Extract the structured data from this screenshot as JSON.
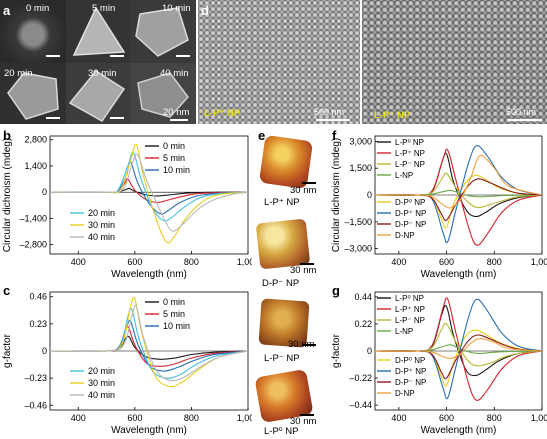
{
  "panel_letters": {
    "a": "a",
    "b": "b",
    "c": "c",
    "d": "d",
    "e": "e",
    "f": "f",
    "g": "g"
  },
  "panel_a": {
    "tiles": [
      "0 min",
      "5 min",
      "10 min",
      "20 min",
      "30 min",
      "40 min"
    ],
    "scale_label": "20 nm"
  },
  "panel_d": {
    "left_label": "L-P⁺ NP",
    "right_label": "L-P⁻ NP",
    "scale_left": "500 nm",
    "scale_right": "500 nm"
  },
  "panel_e": {
    "items": [
      {
        "label": "L-P⁺ NP",
        "scale": "30 nm"
      },
      {
        "label": "D-P⁻ NP",
        "scale": "30 nm"
      },
      {
        "label": "L-P⁻ NP",
        "scale": "30 nm"
      },
      {
        "label": "L-P⁰ NP",
        "scale": "30 nm"
      }
    ]
  },
  "colors": {
    "black": "#1a1a1a",
    "red": "#d6222e",
    "blue": "#2a6db5",
    "cyan": "#45c0e0",
    "yellow": "#e8cf1e",
    "gray": "#b8b8b8",
    "yellowgreen": "#b8b832",
    "orange": "#f0a040",
    "darkred": "#8a1a1a",
    "green": "#6aa94a"
  },
  "chart_data": [
    {
      "id": "b",
      "type": "line",
      "xlabel": "Wavelength (nm)",
      "ylabel": "Circular dichroism (mdeg)",
      "xlim": [
        300,
        1000
      ],
      "ylim": [
        -3300,
        3000
      ],
      "xticks": [
        400,
        600,
        800,
        1000
      ],
      "xtick_labels": [
        "400",
        "600",
        "800",
        "1,000"
      ],
      "yticks": [
        2800,
        1400,
        0,
        -1400,
        -2800
      ],
      "ytick_labels": [
        "2,800",
        "1,400",
        "0",
        "–1,400",
        "–2,800"
      ],
      "legend_top": [
        "0 min",
        "5 min",
        "10 min"
      ],
      "legend_bottom": [
        "20 min",
        "30 min",
        "40 min"
      ],
      "series": [
        {
          "name": "0 min",
          "color": "#1a1a1a",
          "x": [
            300,
            500,
            540,
            570,
            580,
            600,
            640,
            680,
            720,
            760,
            820,
            900,
            1000
          ],
          "y": [
            0,
            0,
            20,
            150,
            200,
            50,
            -150,
            -200,
            -150,
            -80,
            -20,
            0,
            0
          ]
        },
        {
          "name": "5 min",
          "color": "#d6222e",
          "x": [
            300,
            500,
            540,
            565,
            575,
            600,
            640,
            680,
            710,
            760,
            820,
            900,
            1000
          ],
          "y": [
            0,
            0,
            40,
            500,
            700,
            100,
            -400,
            -550,
            -450,
            -250,
            -80,
            -20,
            0
          ]
        },
        {
          "name": "10 min",
          "color": "#2a6db5",
          "x": [
            300,
            500,
            540,
            570,
            585,
            610,
            650,
            690,
            720,
            760,
            820,
            900,
            1000
          ],
          "y": [
            0,
            0,
            60,
            900,
            1600,
            500,
            -600,
            -1150,
            -950,
            -550,
            -200,
            -50,
            0
          ]
        },
        {
          "name": "20 min",
          "color": "#45c0e0",
          "x": [
            300,
            500,
            540,
            575,
            595,
            620,
            660,
            700,
            730,
            770,
            830,
            900,
            1000
          ],
          "y": [
            0,
            0,
            100,
            1400,
            2100,
            800,
            -800,
            -1500,
            -1350,
            -850,
            -300,
            -80,
            0
          ]
        },
        {
          "name": "30 min",
          "color": "#e8cf1e",
          "x": [
            300,
            500,
            550,
            585,
            605,
            630,
            670,
            710,
            740,
            780,
            840,
            900,
            1000
          ],
          "y": [
            0,
            0,
            150,
            1700,
            2550,
            900,
            -1200,
            -2650,
            -2350,
            -1400,
            -500,
            -120,
            0
          ]
        },
        {
          "name": "40 min",
          "color": "#b8b8b8",
          "x": [
            300,
            500,
            560,
            590,
            610,
            640,
            690,
            730,
            770,
            820,
            880,
            950,
            1000
          ],
          "y": [
            0,
            0,
            200,
            1500,
            2000,
            700,
            -1000,
            -2050,
            -1700,
            -950,
            -400,
            -100,
            0
          ]
        }
      ]
    },
    {
      "id": "c",
      "type": "line",
      "xlabel": "Wavelength (nm)",
      "ylabel": "g-factor",
      "xlim": [
        300,
        1000
      ],
      "ylim": [
        -0.5,
        0.5
      ],
      "xticks": [
        400,
        600,
        800,
        1000
      ],
      "xtick_labels": [
        "400",
        "600",
        "800",
        "1,000"
      ],
      "yticks": [
        0.46,
        0.23,
        0,
        -0.23,
        -0.46
      ],
      "ytick_labels": [
        "0.46",
        "0.23",
        "0",
        "–0.23",
        "–0.46"
      ],
      "legend_top": [
        "0 min",
        "5 min",
        "10 min"
      ],
      "legend_bottom": [
        "20 min",
        "30 min",
        "40 min"
      ],
      "series": [
        {
          "name": "0 min",
          "color": "#1a1a1a",
          "x": [
            300,
            500,
            545,
            565,
            580,
            600,
            640,
            690,
            740,
            800,
            880,
            1000
          ],
          "y": [
            0,
            0,
            0.02,
            0.1,
            0.12,
            0.03,
            -0.05,
            -0.07,
            -0.06,
            -0.03,
            -0.01,
            0
          ]
        },
        {
          "name": "5 min",
          "color": "#d6222e",
          "x": [
            300,
            500,
            545,
            565,
            578,
            600,
            640,
            690,
            740,
            800,
            880,
            1000
          ],
          "y": [
            0,
            0,
            0.03,
            0.17,
            0.2,
            0.05,
            -0.1,
            -0.13,
            -0.11,
            -0.06,
            -0.02,
            0
          ]
        },
        {
          "name": "10 min",
          "color": "#2a6db5",
          "x": [
            300,
            500,
            545,
            570,
            585,
            610,
            650,
            700,
            750,
            810,
            880,
            1000
          ],
          "y": [
            0,
            0,
            0.04,
            0.2,
            0.25,
            0.06,
            -0.12,
            -0.17,
            -0.14,
            -0.08,
            -0.03,
            0
          ]
        },
        {
          "name": "20 min",
          "color": "#45c0e0",
          "x": [
            300,
            500,
            550,
            575,
            590,
            615,
            660,
            710,
            760,
            820,
            890,
            1000
          ],
          "y": [
            0,
            0,
            0.05,
            0.29,
            0.35,
            0.1,
            -0.16,
            -0.23,
            -0.2,
            -0.11,
            -0.04,
            0
          ]
        },
        {
          "name": "30 min",
          "color": "#e8cf1e",
          "x": [
            300,
            500,
            555,
            585,
            600,
            625,
            670,
            720,
            770,
            830,
            900,
            1000
          ],
          "y": [
            0,
            0,
            0.06,
            0.38,
            0.44,
            0.15,
            -0.2,
            -0.3,
            -0.26,
            -0.15,
            -0.05,
            0
          ]
        },
        {
          "name": "40 min",
          "color": "#b8b8b8",
          "x": [
            300,
            500,
            560,
            590,
            605,
            630,
            675,
            725,
            775,
            835,
            900,
            1000
          ],
          "y": [
            0,
            0,
            0.05,
            0.3,
            0.38,
            0.12,
            -0.16,
            -0.25,
            -0.22,
            -0.13,
            -0.05,
            0
          ]
        }
      ]
    },
    {
      "id": "f",
      "type": "line",
      "xlabel": "Wavelength (nm)",
      "ylabel": "Circular dichroism (mdeg)",
      "xlim": [
        300,
        1000
      ],
      "ylim": [
        -3300,
        3300
      ],
      "xticks": [
        400,
        600,
        800,
        1000
      ],
      "xtick_labels": [
        "400",
        "600",
        "800",
        "1,000"
      ],
      "yticks": [
        3000,
        1500,
        0,
        -1500,
        -3000
      ],
      "ytick_labels": [
        "3,000",
        "1,500",
        "0",
        "–1,500",
        "–3,000"
      ],
      "legend_top": [
        "L-P⁰ NP",
        "L-P⁺ NP",
        "L-P⁻ NP",
        "L-NP"
      ],
      "legend_bottom": [
        "D-P⁰ NP",
        "D-P⁺ NP",
        "D-P⁻ NP",
        "D-NP"
      ],
      "series": [
        {
          "name": "L-P⁰ NP",
          "color": "#1a1a1a",
          "x": [
            300,
            480,
            540,
            580,
            600,
            630,
            680,
            720,
            760,
            820,
            900,
            1000
          ],
          "y": [
            0,
            0,
            200,
            1800,
            2300,
            700,
            -800,
            -1200,
            -1000,
            -500,
            -150,
            0
          ]
        },
        {
          "name": "L-P⁺ NP",
          "color": "#d6222e",
          "x": [
            300,
            480,
            540,
            585,
            605,
            640,
            690,
            725,
            770,
            830,
            900,
            1000
          ],
          "y": [
            0,
            0,
            250,
            2000,
            2500,
            800,
            -1700,
            -2800,
            -2200,
            -1000,
            -300,
            0
          ]
        },
        {
          "name": "L-P⁻ NP",
          "color": "#b8b832",
          "x": [
            300,
            480,
            540,
            580,
            600,
            640,
            690,
            730,
            780,
            840,
            900,
            1000
          ],
          "y": [
            0,
            0,
            150,
            900,
            1200,
            400,
            -400,
            -700,
            -550,
            -300,
            -100,
            0
          ]
        },
        {
          "name": "L-NP",
          "color": "#6aa94a",
          "x": [
            300,
            480,
            540,
            590,
            620,
            660,
            700,
            740,
            800,
            860,
            1000
          ],
          "y": [
            0,
            0,
            50,
            200,
            250,
            80,
            -60,
            -100,
            -60,
            -20,
            0
          ]
        },
        {
          "name": "D-P⁰ NP",
          "color": "#e8cf1e",
          "x": [
            300,
            480,
            540,
            580,
            600,
            630,
            680,
            720,
            760,
            820,
            900,
            1000
          ],
          "y": [
            0,
            0,
            -150,
            -1400,
            -1800,
            -500,
            700,
            1100,
            900,
            400,
            100,
            0
          ]
        },
        {
          "name": "D-P⁺ NP",
          "color": "#2a6db5",
          "x": [
            300,
            480,
            540,
            585,
            605,
            640,
            690,
            725,
            770,
            830,
            900,
            1000
          ],
          "y": [
            0,
            0,
            -250,
            -2100,
            -2600,
            -800,
            1700,
            2750,
            2200,
            1000,
            300,
            0
          ]
        },
        {
          "name": "D-P⁻ NP",
          "color": "#8a1a1a",
          "x": [
            300,
            480,
            540,
            580,
            600,
            640,
            690,
            730,
            780,
            840,
            900,
            1000
          ],
          "y": [
            0,
            0,
            -200,
            -1100,
            -1400,
            -500,
            500,
            900,
            700,
            350,
            100,
            0
          ]
        },
        {
          "name": "D-NP",
          "color": "#f0a040",
          "x": [
            300,
            480,
            540,
            590,
            620,
            660,
            700,
            740,
            800,
            860,
            1000
          ],
          "y": [
            0,
            0,
            -100,
            -600,
            -700,
            -200,
            900,
            2200,
            1500,
            500,
            0
          ]
        }
      ]
    },
    {
      "id": "g",
      "type": "line",
      "xlabel": "Wavelength (nm)",
      "ylabel": "g-factor",
      "xlim": [
        300,
        1000
      ],
      "ylim": [
        -0.48,
        0.48
      ],
      "xticks": [
        400,
        600,
        800,
        1000
      ],
      "xtick_labels": [
        "400",
        "600",
        "800",
        "1,000"
      ],
      "yticks": [
        0.44,
        0.22,
        0,
        -0.22,
        -0.44
      ],
      "ytick_labels": [
        "0.44",
        "0.22",
        "0",
        "–0.22",
        "–0.44"
      ],
      "legend_top": [
        "L-P⁰ NP",
        "L-P⁺ NP",
        "L-P⁻ NP",
        "L-NP"
      ],
      "legend_bottom": [
        "D-P⁰ NP",
        "D-P⁺ NP",
        "D-P⁻ NP",
        "D-NP"
      ],
      "series": [
        {
          "name": "L-P⁰ NP",
          "color": "#1a1a1a",
          "x": [
            300,
            480,
            540,
            580,
            600,
            630,
            680,
            720,
            760,
            820,
            900,
            1000
          ],
          "y": [
            0,
            0,
            0.04,
            0.3,
            0.36,
            0.12,
            -0.15,
            -0.2,
            -0.16,
            -0.08,
            -0.02,
            0
          ]
        },
        {
          "name": "L-P⁺ NP",
          "color": "#d6222e",
          "x": [
            300,
            480,
            540,
            585,
            605,
            640,
            690,
            725,
            770,
            830,
            900,
            1000
          ],
          "y": [
            0,
            0,
            0.05,
            0.35,
            0.42,
            0.14,
            -0.25,
            -0.4,
            -0.32,
            -0.15,
            -0.04,
            0
          ]
        },
        {
          "name": "L-P⁻ NP",
          "color": "#b8b832",
          "x": [
            300,
            480,
            540,
            580,
            600,
            640,
            690,
            730,
            780,
            840,
            900,
            1000
          ],
          "y": [
            0,
            0,
            0.03,
            0.18,
            0.22,
            0.07,
            -0.08,
            -0.12,
            -0.1,
            -0.05,
            -0.02,
            0
          ]
        },
        {
          "name": "L-NP",
          "color": "#6aa94a",
          "x": [
            300,
            480,
            540,
            590,
            620,
            660,
            700,
            740,
            800,
            860,
            1000
          ],
          "y": [
            0,
            0,
            0.01,
            0.04,
            0.05,
            0.015,
            -0.01,
            -0.02,
            -0.01,
            -0.005,
            0
          ]
        },
        {
          "name": "D-P⁰ NP",
          "color": "#e8cf1e",
          "x": [
            300,
            480,
            540,
            580,
            600,
            630,
            680,
            720,
            760,
            820,
            900,
            1000
          ],
          "y": [
            0,
            0,
            -0.03,
            -0.22,
            -0.28,
            -0.09,
            0.12,
            0.17,
            0.14,
            0.07,
            0.02,
            0
          ]
        },
        {
          "name": "D-P⁺ NP",
          "color": "#2a6db5",
          "x": [
            300,
            480,
            540,
            585,
            605,
            640,
            690,
            725,
            770,
            830,
            900,
            1000
          ],
          "y": [
            0,
            0,
            -0.04,
            -0.3,
            -0.38,
            -0.12,
            0.26,
            0.42,
            0.33,
            0.15,
            0.04,
            0
          ]
        },
        {
          "name": "D-P⁻ NP",
          "color": "#8a1a1a",
          "x": [
            300,
            480,
            540,
            580,
            600,
            640,
            690,
            730,
            780,
            840,
            900,
            1000
          ],
          "y": [
            0,
            0,
            -0.03,
            -0.18,
            -0.22,
            -0.07,
            0.08,
            0.13,
            0.1,
            0.05,
            0.015,
            0
          ]
        },
        {
          "name": "D-NP",
          "color": "#f0a040",
          "x": [
            300,
            480,
            540,
            590,
            620,
            660,
            700,
            740,
            800,
            860,
            1000
          ],
          "y": [
            0,
            0,
            -0.01,
            -0.05,
            -0.06,
            -0.02,
            0.06,
            0.1,
            0.07,
            0.02,
            0
          ]
        }
      ]
    }
  ]
}
